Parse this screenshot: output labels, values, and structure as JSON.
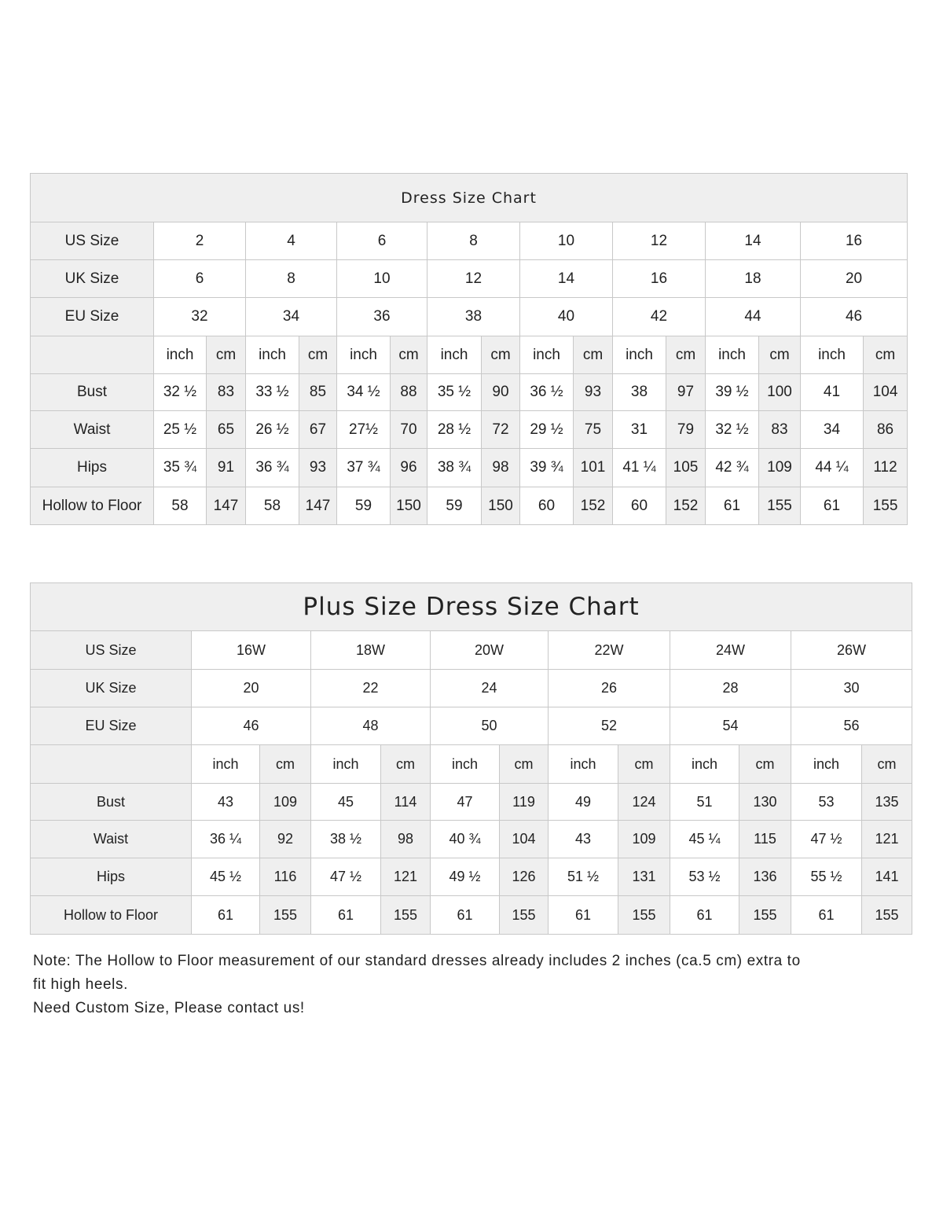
{
  "standard": {
    "title": "Dress Size Chart",
    "size_rows": [
      {
        "label": "US Size",
        "values": [
          "2",
          "4",
          "6",
          "8",
          "10",
          "12",
          "14",
          "16"
        ]
      },
      {
        "label": "UK Size",
        "values": [
          "6",
          "8",
          "10",
          "12",
          "14",
          "16",
          "18",
          "20"
        ]
      },
      {
        "label": "EU Size",
        "values": [
          "32",
          "34",
          "36",
          "38",
          "40",
          "42",
          "44",
          "46"
        ]
      }
    ],
    "unit_inch": "inch",
    "unit_cm": "cm",
    "measure_rows": [
      {
        "label": "Bust",
        "values": [
          "32 ½",
          "83",
          "33 ½",
          "85",
          "34 ½",
          "88",
          "35 ½",
          "90",
          "36 ½",
          "93",
          "38",
          "97",
          "39 ½",
          "100",
          "41",
          "104"
        ]
      },
      {
        "label": "Waist",
        "values": [
          "25 ½",
          "65",
          "26 ½",
          "67",
          "27½",
          "70",
          "28 ½",
          "72",
          "29 ½",
          "75",
          "31",
          "79",
          "32 ½",
          "83",
          "34",
          "86"
        ]
      },
      {
        "label": "Hips",
        "values": [
          "35 ¾",
          "91",
          "36 ¾",
          "93",
          "37 ¾",
          "96",
          "38 ¾",
          "98",
          "39 ¾",
          "101",
          "41 ¼",
          "105",
          "42 ¾",
          "109",
          "44 ¼",
          "112"
        ]
      },
      {
        "label": "Hollow to Floor",
        "values": [
          "58",
          "147",
          "58",
          "147",
          "59",
          "150",
          "59",
          "150",
          "60",
          "152",
          "60",
          "152",
          "61",
          "155",
          "61",
          "155"
        ]
      }
    ]
  },
  "plus": {
    "title": "Plus Size Dress Size Chart",
    "size_rows": [
      {
        "label": "US Size",
        "values": [
          "16W",
          "18W",
          "20W",
          "22W",
          "24W",
          "26W"
        ]
      },
      {
        "label": "UK Size",
        "values": [
          "20",
          "22",
          "24",
          "26",
          "28",
          "30"
        ]
      },
      {
        "label": "EU Size",
        "values": [
          "46",
          "48",
          "50",
          "52",
          "54",
          "56"
        ]
      }
    ],
    "unit_inch": "inch",
    "unit_cm": "cm",
    "measure_rows": [
      {
        "label": "Bust",
        "values": [
          "43",
          "109",
          "45",
          "114",
          "47",
          "119",
          "49",
          "124",
          "51",
          "130",
          "53",
          "135"
        ]
      },
      {
        "label": "Waist",
        "values": [
          "36 ¼",
          "92",
          "38 ½",
          "98",
          "40 ¾",
          "104",
          "43",
          "109",
          "45 ¼",
          "115",
          "47 ½",
          "121"
        ]
      },
      {
        "label": "Hips",
        "values": [
          "45 ½",
          "116",
          "47 ½",
          "121",
          "49 ½",
          "126",
          "51 ½",
          "131",
          "53 ½",
          "136",
          "55 ½",
          "141"
        ]
      },
      {
        "label": "Hollow to Floor",
        "values": [
          "61",
          "155",
          "61",
          "155",
          "61",
          "155",
          "61",
          "155",
          "61",
          "155",
          "61",
          "155"
        ]
      }
    ]
  },
  "notes": {
    "line1": "Note: The Hollow to Floor measurement of our standard dresses already includes 2 inches (ca.5 cm) extra to",
    "line2": "fit high heels.",
    "line3": "Need Custom Size, Please contact us!"
  }
}
